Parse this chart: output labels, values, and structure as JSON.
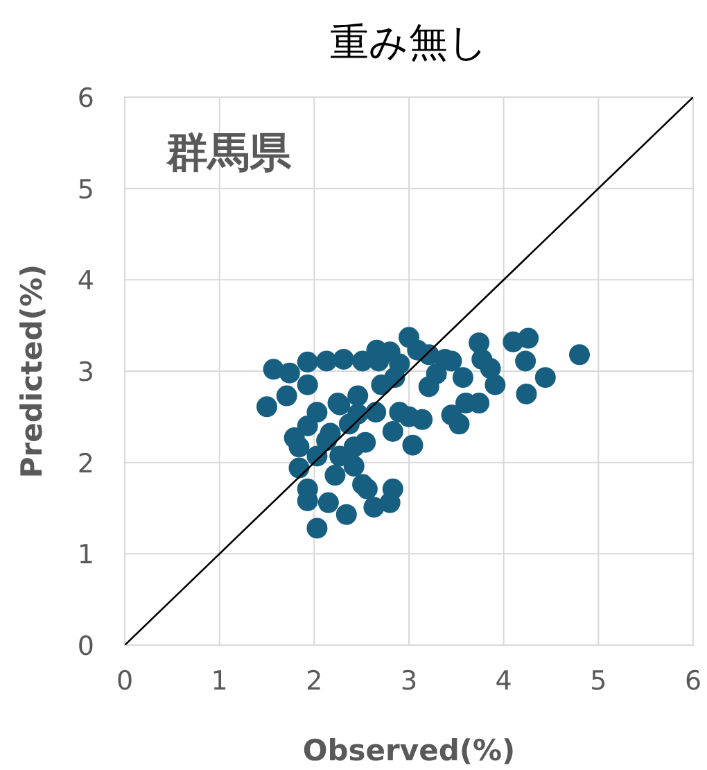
{
  "chart_data": {
    "type": "scatter",
    "title": "重み無し",
    "xlabel": "Observed(%)",
    "ylabel": "Predicted(%)",
    "annotations": [
      "群馬県"
    ],
    "xlim": [
      0,
      6
    ],
    "ylim": [
      0,
      6
    ],
    "xticks": [
      0,
      1,
      2,
      3,
      4,
      5,
      6
    ],
    "yticks": [
      0,
      1,
      2,
      3,
      4,
      5,
      6
    ],
    "grid": true,
    "series": [
      {
        "marker": "circle",
        "color": "#175f80",
        "x": [
          1.5,
          1.57,
          1.74,
          1.93,
          1.93,
          1.71,
          2.13,
          2.31,
          2.51,
          2.66,
          2.8,
          3.0,
          3.09,
          2.9,
          2.71,
          2.85,
          3.21,
          3.38,
          3.29,
          3.21,
          3.45,
          3.57,
          3.74,
          3.77,
          3.86,
          3.91,
          4.1,
          4.26,
          4.23,
          4.44,
          4.24,
          4.8,
          3.74,
          3.6,
          3.45,
          3.53,
          3.14,
          3.0,
          2.9,
          2.83,
          3.04,
          2.65,
          2.46,
          2.25,
          2.03,
          1.93,
          1.79,
          1.84,
          2.13,
          2.37,
          2.54,
          2.42,
          2.27,
          2.22,
          2.42,
          2.03,
          1.84,
          1.93,
          1.93,
          2.15,
          2.51,
          2.56,
          2.34,
          2.63,
          2.8,
          2.83,
          2.03,
          2.27,
          2.46,
          2.17,
          2.68
        ],
        "values": [
          2.61,
          3.02,
          2.98,
          3.1,
          2.85,
          2.73,
          3.11,
          3.13,
          3.11,
          3.23,
          3.21,
          3.37,
          3.23,
          3.08,
          2.85,
          2.93,
          3.18,
          3.13,
          2.97,
          2.83,
          3.11,
          2.93,
          3.31,
          3.13,
          3.03,
          2.85,
          3.32,
          3.36,
          3.11,
          2.93,
          2.75,
          3.18,
          2.65,
          2.65,
          2.52,
          2.42,
          2.47,
          2.5,
          2.55,
          2.34,
          2.19,
          2.55,
          2.73,
          2.65,
          2.55,
          2.4,
          2.27,
          2.17,
          2.24,
          2.42,
          2.22,
          2.17,
          2.07,
          1.86,
          1.96,
          2.07,
          1.94,
          1.71,
          1.58,
          1.56,
          1.76,
          1.71,
          1.43,
          1.51,
          1.56,
          1.71,
          1.28,
          2.63,
          2.53,
          2.32,
          3.11
        ]
      },
      {
        "type": "line",
        "color": "#000000",
        "x": [
          0,
          6
        ],
        "values": [
          0,
          6
        ]
      }
    ]
  }
}
